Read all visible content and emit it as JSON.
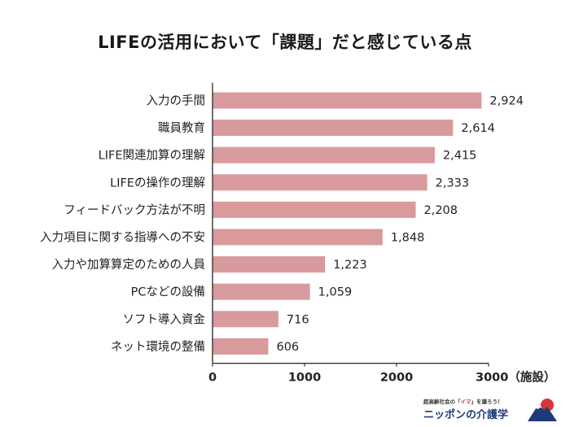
{
  "chart_data": {
    "type": "bar",
    "orientation": "horizontal",
    "title": "LIFEの活用において「課題」だと感じている点",
    "categories": [
      "入力の手間",
      "職員教育",
      "LIFE関連加算の理解",
      "LIFEの操作の理解",
      "フィードバック方法が不明",
      "入力項目に関する指導への不安",
      "入力や加算算定のための人員",
      "PCなどの設備",
      "ソフト導入資金",
      "ネット環境の整備"
    ],
    "values": [
      2924,
      2614,
      2415,
      2333,
      2208,
      1848,
      1223,
      1059,
      716,
      606
    ],
    "value_labels": [
      "2,924",
      "2,614",
      "2,415",
      "2,333",
      "2,208",
      "1,848",
      "1,223",
      "1,059",
      "716",
      "606"
    ],
    "x_ticks": [
      "0",
      "1000",
      "2000",
      "3000（施設）"
    ],
    "xlim": [
      0,
      3000
    ],
    "grid": false,
    "legend": "none",
    "bar_color": "#d99a9d"
  },
  "logo": {
    "tag_pre": "超高齢社会の「",
    "tag_hl": "イマ",
    "tag_post": "」を識ろう！",
    "name": "ニッポンの介護学"
  }
}
